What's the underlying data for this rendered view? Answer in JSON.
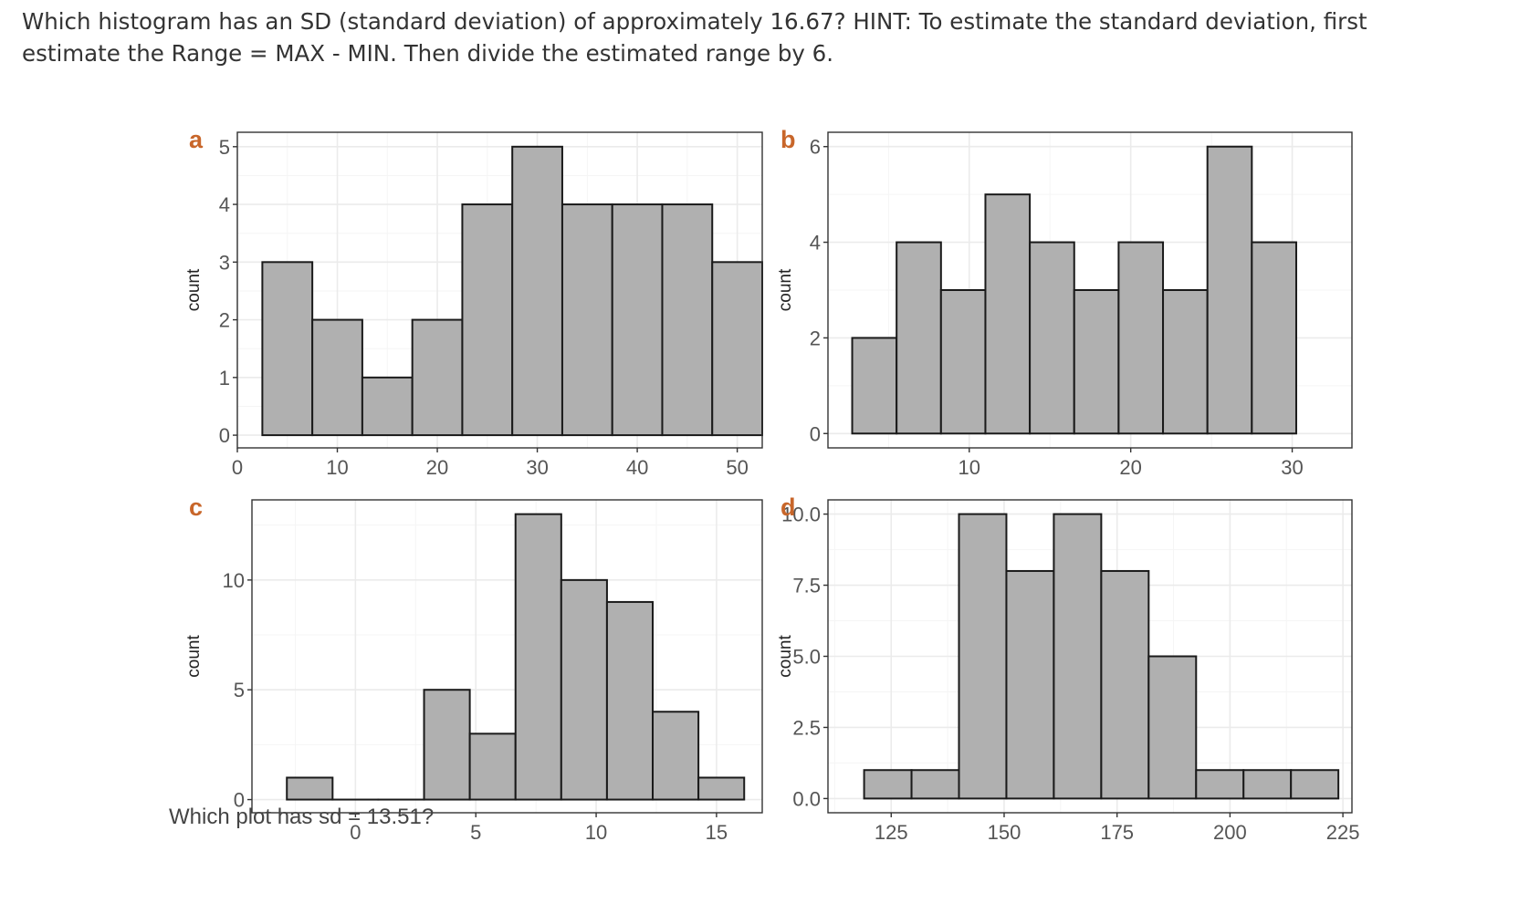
{
  "question": {
    "text": "Which histogram has an SD (standard deviation) of approximately 16.67? HINT: To estimate the standard deviation, first estimate the Range = MAX - MIN. Then divide the estimated range by 6."
  },
  "sub_question": "Which plot has sd = 13.51?",
  "chart_data": [
    {
      "type": "bar",
      "panel": "a",
      "ylabel": "count",
      "xlim": [
        0,
        52.5
      ],
      "ylim": [
        -0.22,
        5.25
      ],
      "xticks": [
        0,
        10,
        20,
        30,
        40,
        50
      ],
      "yticks": [
        0,
        1,
        2,
        3,
        4,
        5
      ],
      "bin_width": 5,
      "bins": [
        {
          "x0": 2.5,
          "count": 3
        },
        {
          "x0": 7.5,
          "count": 2
        },
        {
          "x0": 12.5,
          "count": 1
        },
        {
          "x0": 17.5,
          "count": 2
        },
        {
          "x0": 22.5,
          "count": 4
        },
        {
          "x0": 27.5,
          "count": 5
        },
        {
          "x0": 32.5,
          "count": 4
        },
        {
          "x0": 37.5,
          "count": 4
        },
        {
          "x0": 42.5,
          "count": 4
        },
        {
          "x0": 47.5,
          "count": 3
        }
      ],
      "grid": true
    },
    {
      "type": "bar",
      "panel": "b",
      "ylabel": "count",
      "xlim": [
        1.25,
        33.7
      ],
      "ylim": [
        -0.3,
        6.3
      ],
      "xticks": [
        10,
        20,
        30
      ],
      "yticks": [
        0,
        2,
        4,
        6
      ],
      "bin_width": 2.75,
      "bins": [
        {
          "x0": 2.75,
          "count": 2
        },
        {
          "x0": 5.5,
          "count": 4
        },
        {
          "x0": 8.25,
          "count": 3
        },
        {
          "x0": 11.0,
          "count": 5
        },
        {
          "x0": 13.75,
          "count": 4
        },
        {
          "x0": 16.5,
          "count": 3
        },
        {
          "x0": 19.25,
          "count": 4
        },
        {
          "x0": 22.0,
          "count": 3
        },
        {
          "x0": 24.75,
          "count": 6
        },
        {
          "x0": 27.5,
          "count": 4
        }
      ],
      "grid": true
    },
    {
      "type": "bar",
      "panel": "c",
      "ylabel": "count",
      "xlim": [
        -4.3,
        16.9
      ],
      "ylim": [
        -0.6,
        13.65
      ],
      "xticks": [
        0,
        5,
        10,
        15
      ],
      "yticks": [
        0,
        5,
        10
      ],
      "bin_width": 1.9,
      "bins": [
        {
          "x0": -2.85,
          "count": 1
        },
        {
          "x0": -0.95,
          "count": 0
        },
        {
          "x0": 0.95,
          "count": 0
        },
        {
          "x0": 2.85,
          "count": 5
        },
        {
          "x0": 4.75,
          "count": 3
        },
        {
          "x0": 6.65,
          "count": 13
        },
        {
          "x0": 8.55,
          "count": 10
        },
        {
          "x0": 10.45,
          "count": 9
        },
        {
          "x0": 12.35,
          "count": 4
        },
        {
          "x0": 14.25,
          "count": 1
        }
      ],
      "grid": true
    },
    {
      "type": "bar",
      "panel": "d",
      "ylabel": "count",
      "xlim": [
        111,
        227
      ],
      "ylim": [
        -0.5,
        10.5
      ],
      "xticks": [
        125,
        150,
        175,
        200,
        225
      ],
      "yticks": [
        0.0,
        2.5,
        5.0,
        7.5,
        10.0
      ],
      "ytick_labels": [
        "0.0",
        "2.5",
        "5.0",
        "7.5",
        "10.0"
      ],
      "bin_width": 10.5,
      "bins": [
        {
          "x0": 119.0,
          "count": 1
        },
        {
          "x0": 129.5,
          "count": 1
        },
        {
          "x0": 140.0,
          "count": 10
        },
        {
          "x0": 150.5,
          "count": 8
        },
        {
          "x0": 161.0,
          "count": 10
        },
        {
          "x0": 171.5,
          "count": 8
        },
        {
          "x0": 182.0,
          "count": 5
        },
        {
          "x0": 192.5,
          "count": 1
        },
        {
          "x0": 203.0,
          "count": 1
        },
        {
          "x0": 213.5,
          "count": 1
        }
      ],
      "grid": true
    }
  ],
  "colors": {
    "bar_fill": "#b0b0b0",
    "bar_stroke": "#1a1a1a",
    "panel_border": "#333333",
    "grid_major": "#ebebeb",
    "grid_minor": "#f5f5f5",
    "letter": "#c8662a"
  }
}
